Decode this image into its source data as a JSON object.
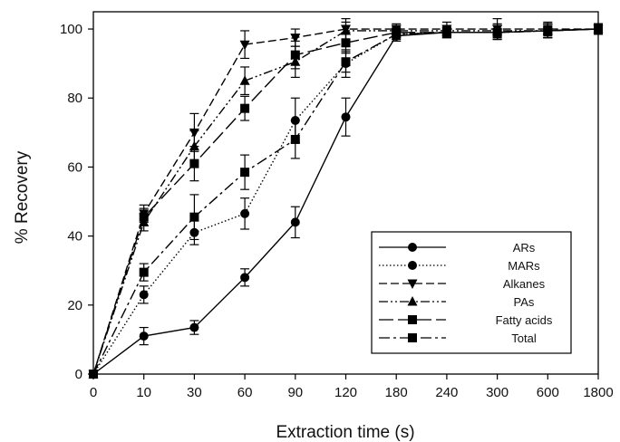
{
  "chart_data": {
    "type": "line",
    "title": "",
    "xlabel": "Extraction time (s)",
    "ylabel": "% Recovery",
    "categories": [
      "0",
      "10",
      "30",
      "60",
      "90",
      "120",
      "180",
      "240",
      "300",
      "600",
      "1800"
    ],
    "ylim": [
      0,
      105
    ],
    "yticks": [
      0,
      20,
      40,
      60,
      80,
      100
    ],
    "grid": false,
    "legend_position": "bottom-right",
    "series": [
      {
        "name": "ARs",
        "marker": "circle",
        "dash": "solid",
        "values": [
          0,
          11,
          13.5,
          28,
          44,
          74.5,
          98,
          99,
          99,
          99.5,
          100
        ],
        "errors": [
          0,
          2.5,
          2,
          2.5,
          4.5,
          5.5,
          1.5,
          1.5,
          2,
          2,
          1.5
        ]
      },
      {
        "name": "MARs",
        "marker": "circle",
        "dash": "dotted",
        "values": [
          0,
          23,
          41,
          46.5,
          73.5,
          90,
          98.5,
          99,
          99,
          99.5,
          100
        ],
        "errors": [
          0,
          2.5,
          3.5,
          4.5,
          6.5,
          4,
          1.5,
          1.5,
          2,
          2,
          1.5
        ]
      },
      {
        "name": "Alkanes",
        "marker": "triangle-down",
        "dash": "dashed",
        "values": [
          0,
          46.5,
          70,
          95.5,
          97.5,
          100,
          100,
          100,
          100,
          100,
          100
        ],
        "errors": [
          0,
          2.5,
          5.5,
          4,
          2.5,
          3,
          1.5,
          2,
          3,
          2,
          1.5
        ]
      },
      {
        "name": "PAs",
        "marker": "triangle-up",
        "dash": "dash-dot-dot",
        "values": [
          0,
          44,
          66,
          85,
          90.5,
          99.5,
          99.5,
          99.5,
          99.5,
          99.5,
          100
        ],
        "errors": [
          0,
          2.5,
          4.5,
          4,
          4.5,
          2.5,
          1.5,
          1.5,
          2,
          2,
          1.5
        ]
      },
      {
        "name": "Fatty acids",
        "marker": "square",
        "dash": "long-dash",
        "values": [
          0,
          45.5,
          61,
          77,
          92.5,
          96,
          99,
          99,
          99,
          99.5,
          100
        ],
        "errors": [
          0,
          2.5,
          5,
          3.5,
          4,
          3,
          1.5,
          1.5,
          2,
          2,
          1.5
        ]
      },
      {
        "name": "Total",
        "marker": "square",
        "dash": "dash-dot",
        "values": [
          0,
          29.5,
          45.5,
          58.5,
          68,
          90.5,
          98.5,
          99,
          99,
          99.5,
          100
        ],
        "errors": [
          0,
          2.5,
          6.5,
          5,
          5.5,
          3,
          1.5,
          1.5,
          2,
          2,
          1.5
        ]
      }
    ]
  }
}
